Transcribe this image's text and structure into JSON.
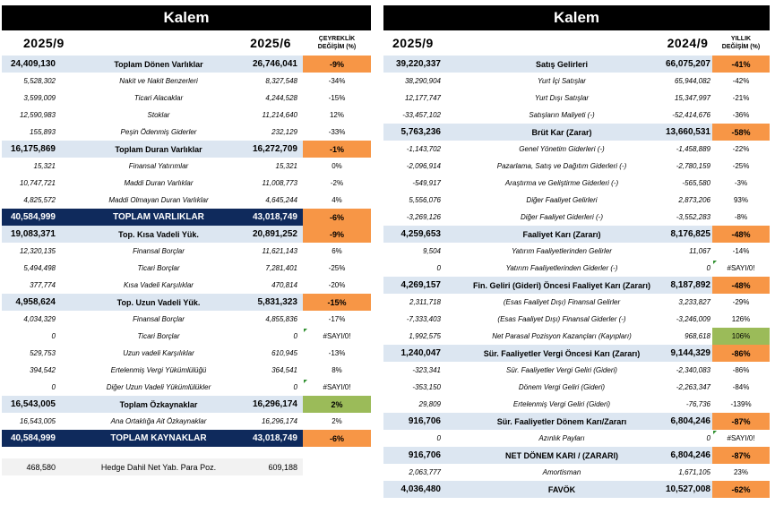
{
  "left": {
    "title": "Kalem",
    "header": {
      "period_a": "2025/9",
      "period_b": "2025/6",
      "change_label_1": "ÇEYREKLİK",
      "change_label_2": "DEĞİŞİM (%)"
    },
    "rows": [
      {
        "type": "group",
        "a": "24,409,130",
        "label": "Toplam Dönen Varlıklar",
        "b": "26,746,041",
        "chg": "-9%",
        "hl": "orange"
      },
      {
        "type": "sub",
        "a": "5,528,302",
        "label": "Nakit ve Nakit Benzerleri",
        "b": "8,327,548",
        "chg": "-34%"
      },
      {
        "type": "sub",
        "a": "3,599,009",
        "label": "Ticari Alacaklar",
        "b": "4,244,528",
        "chg": "-15%"
      },
      {
        "type": "sub",
        "a": "12,590,983",
        "label": "Stoklar",
        "b": "11,214,640",
        "chg": "12%"
      },
      {
        "type": "sub",
        "a": "155,893",
        "label": "Peşin Ödenmiş Giderler",
        "b": "232,129",
        "chg": "-33%"
      },
      {
        "type": "group",
        "a": "16,175,869",
        "label": "Toplam Duran Varlıklar",
        "b": "16,272,709",
        "chg": "-1%",
        "hl": "orange"
      },
      {
        "type": "sub",
        "a": "15,321",
        "label": "Finansal Yatırımlar",
        "b": "15,321",
        "chg": "0%"
      },
      {
        "type": "sub",
        "a": "10,747,721",
        "label": "Maddi Duran Varlıklar",
        "b": "11,008,773",
        "chg": "-2%"
      },
      {
        "type": "sub",
        "a": "4,825,572",
        "label": "Maddi Olmayan Duran Varlıklar",
        "b": "4,645,244",
        "chg": "4%"
      },
      {
        "type": "total",
        "a": "40,584,999",
        "label": "TOPLAM VARLIKLAR",
        "b": "43,018,749",
        "chg": "-6%",
        "hl": "orange"
      },
      {
        "type": "group",
        "a": "19,083,371",
        "label": "Top. Kısa Vadeli Yük.",
        "b": "20,891,252",
        "chg": "-9%",
        "hl": "orange"
      },
      {
        "type": "sub",
        "a": "12,320,135",
        "label": "Finansal Borçlar",
        "b": "11,621,143",
        "chg": "6%"
      },
      {
        "type": "sub",
        "a": "5,494,498",
        "label": "Ticari Borçlar",
        "b": "7,281,401",
        "chg": "-25%"
      },
      {
        "type": "sub",
        "a": "377,774",
        "label": "Kısa Vadeli Karşılıklar",
        "b": "470,814",
        "chg": "-20%"
      },
      {
        "type": "group",
        "a": "4,958,624",
        "label": "Top. Uzun Vadeli Yük.",
        "b": "5,831,323",
        "chg": "-15%",
        "hl": "orange"
      },
      {
        "type": "sub",
        "a": "4,034,329",
        "label": "Finansal Borçlar",
        "b": "4,855,836",
        "chg": "-17%"
      },
      {
        "type": "sub",
        "a": "0",
        "label": "Ticari Borçlar",
        "b": "0",
        "chg": "#SAYI/0!",
        "flag": true
      },
      {
        "type": "sub",
        "a": "529,753",
        "label": "Uzun vadeli Karşılıklar",
        "b": "610,945",
        "chg": "-13%"
      },
      {
        "type": "sub",
        "a": "394,542",
        "label": "Ertelenmiş Vergi Yükümlülüğü",
        "b": "364,541",
        "chg": "8%"
      },
      {
        "type": "sub",
        "a": "0",
        "label": "Diğer Uzun Vadeli Yükümlülükler",
        "b": "0",
        "chg": "#SAYI/0!",
        "flag": true
      },
      {
        "type": "group",
        "a": "16,543,005",
        "label": "Toplam Özkaynaklar",
        "b": "16,296,174",
        "chg": "2%",
        "hl": "green"
      },
      {
        "type": "sub",
        "a": "16,543,005",
        "label": "Ana Ortaklığa Ait Özkaynaklar",
        "b": "16,296,174",
        "chg": "2%"
      },
      {
        "type": "total",
        "a": "40,584,999",
        "label": "TOPLAM KAYNAKLAR",
        "b": "43,018,749",
        "chg": "-6%",
        "hl": "orange"
      }
    ],
    "footer": {
      "a": "468,580",
      "label": "Hedge Dahil Net Yab. Para Poz.",
      "b": "609,188"
    }
  },
  "right": {
    "title": "Kalem",
    "header": {
      "period_a": "2025/9",
      "period_b": "2024/9",
      "change_label_1": "YILLIK",
      "change_label_2": "DEĞİŞİM (%)"
    },
    "rows": [
      {
        "type": "group",
        "a": "39,220,337",
        "label": "Satış Gelirleri",
        "b": "66,075,207",
        "chg": "-41%",
        "hl": "orange"
      },
      {
        "type": "sub",
        "a": "38,290,904",
        "label": "Yurt İçi Satışlar",
        "b": "65,944,082",
        "chg": "-42%"
      },
      {
        "type": "sub",
        "a": "12,177,747",
        "label": "Yurt Dışı Satışlar",
        "b": "15,347,997",
        "chg": "-21%"
      },
      {
        "type": "sub",
        "a": "-33,457,102",
        "label": "Satışların Maliyeti (-)",
        "b": "-52,414,676",
        "chg": "-36%"
      },
      {
        "type": "group",
        "a": "5,763,236",
        "label": "Brüt Kar (Zarar)",
        "b": "13,660,531",
        "chg": "-58%",
        "hl": "orange"
      },
      {
        "type": "sub",
        "a": "-1,143,702",
        "label": "Genel Yönetim Giderleri (-)",
        "b": "-1,458,889",
        "chg": "-22%"
      },
      {
        "type": "sub",
        "a": "-2,096,914",
        "label": "Pazarlama, Satış ve Dağıtım Giderleri (-)",
        "b": "-2,780,159",
        "chg": "-25%"
      },
      {
        "type": "sub",
        "a": "-549,917",
        "label": "Araştırma ve Geliştirme Giderleri (-)",
        "b": "-565,580",
        "chg": "-3%"
      },
      {
        "type": "sub",
        "a": "5,556,076",
        "label": "Diğer Faaliyet Gelirleri",
        "b": "2,873,206",
        "chg": "93%"
      },
      {
        "type": "sub",
        "a": "-3,269,126",
        "label": "Diğer Faaliyet Giderleri (-)",
        "b": "-3,552,283",
        "chg": "-8%"
      },
      {
        "type": "group",
        "a": "4,259,653",
        "label": "Faaliyet Karı (Zararı)",
        "b": "8,176,825",
        "chg": "-48%",
        "hl": "orange"
      },
      {
        "type": "sub",
        "a": "9,504",
        "label": "Yatırım Faaliyetlerinden Gelirler",
        "b": "11,067",
        "chg": "-14%"
      },
      {
        "type": "sub",
        "a": "0",
        "label": "Yatırım Faaliyetlerinden Giderler (-)",
        "b": "0",
        "chg": "#SAYI/0!",
        "flag": true
      },
      {
        "type": "group",
        "a": "4,269,157",
        "label": "Fin. Geliri (Gideri) Öncesi Faaliyet Karı (Zararı)",
        "b": "8,187,892",
        "chg": "-48%",
        "hl": "orange"
      },
      {
        "type": "sub",
        "a": "2,311,718",
        "label": "(Esas Faaliyet Dışı) Finansal Gelirler",
        "b": "3,233,827",
        "chg": "-29%"
      },
      {
        "type": "sub",
        "a": "-7,333,403",
        "label": "(Esas Faaliyet Dışı) Finansal Giderler (-)",
        "b": "-3,246,009",
        "chg": "126%"
      },
      {
        "type": "sub",
        "a": "1,992,575",
        "label": "Net Parasal Pozisyon Kazançları (Kayıpları)",
        "b": "968,618",
        "chg": "106%",
        "hl": "green"
      },
      {
        "type": "group",
        "a": "1,240,047",
        "label": "Sür. Faaliyetler Vergi Öncesi Karı (Zararı)",
        "b": "9,144,329",
        "chg": "-86%",
        "hl": "orange"
      },
      {
        "type": "sub",
        "a": "-323,341",
        "label": "Sür. Faaliyetler Vergi Geliri (Gideri)",
        "b": "-2,340,083",
        "chg": "-86%"
      },
      {
        "type": "sub",
        "a": "-353,150",
        "label": "Dönem Vergi Geliri (Gideri)",
        "b": "-2,263,347",
        "chg": "-84%"
      },
      {
        "type": "sub",
        "a": "29,809",
        "label": "Ertelenmiş Vergi Geliri (Gideri)",
        "b": "-76,736",
        "chg": "-139%"
      },
      {
        "type": "group",
        "a": "916,706",
        "label": "Sür. Faaliyetler Dönem Karı/Zararı",
        "b": "6,804,246",
        "chg": "-87%",
        "hl": "orange"
      },
      {
        "type": "sub",
        "a": "0",
        "label": "Azınlık Payları",
        "b": "0",
        "chg": "#SAYI/0!",
        "flag": true
      },
      {
        "type": "group",
        "a": "916,706",
        "label": "NET DÖNEM KARI / (ZARARI)",
        "b": "6,804,246",
        "chg": "-87%",
        "hl": "orange"
      },
      {
        "type": "sub",
        "a": "2,063,777",
        "label": "Amortisman",
        "b": "1,671,105",
        "chg": "23%"
      },
      {
        "type": "group",
        "a": "4,036,480",
        "label": "FAVÖK",
        "b": "10,527,008",
        "chg": "-62%",
        "hl": "orange"
      }
    ]
  }
}
